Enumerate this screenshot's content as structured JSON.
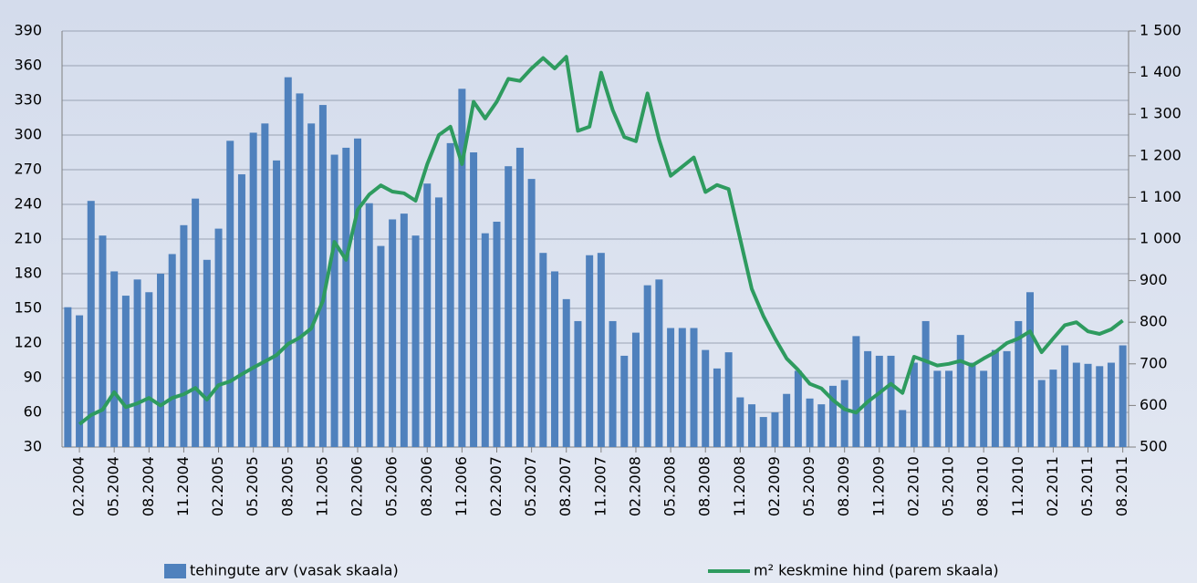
{
  "chart_data": {
    "type": "bar",
    "categories": [
      null,
      "02.2004",
      null,
      null,
      "05.2004",
      null,
      null,
      "08.2004",
      null,
      null,
      "11.2004",
      null,
      null,
      "02.2005",
      null,
      null,
      "05.2005",
      null,
      null,
      "08.2005",
      null,
      null,
      "11.2005",
      null,
      null,
      "02.2006",
      null,
      null,
      "05.2006",
      null,
      null,
      "08.2006",
      null,
      null,
      "11.2006",
      null,
      null,
      "02.2007",
      null,
      null,
      "05.2007",
      null,
      null,
      "08.2007",
      null,
      null,
      "11.2007",
      null,
      null,
      "02.2008",
      null,
      null,
      "05.2008",
      null,
      null,
      "08.2008",
      null,
      null,
      "11.2008",
      null,
      null,
      "02.2009",
      null,
      null,
      "05.2009",
      null,
      null,
      "08.2009",
      null,
      null,
      "11.2009",
      null,
      null,
      "02.2010",
      null,
      null,
      "05.2010",
      null,
      null,
      "08.2010",
      null,
      null,
      "11.2010",
      null,
      null,
      "02.2011",
      null,
      null,
      "05.2011",
      null,
      null,
      "08.2011"
    ],
    "series": [
      {
        "name": "tehingute arv (vasak skaala)",
        "type": "bar",
        "color": "#4f81bd",
        "values": [
          151,
          144,
          243,
          213,
          182,
          161,
          175,
          164,
          180,
          197,
          222,
          245,
          192,
          219,
          295,
          266,
          302,
          310,
          278,
          350,
          336,
          310,
          326,
          283,
          289,
          297,
          241,
          204,
          227,
          232,
          213,
          258,
          246,
          293,
          340,
          285,
          215,
          225,
          273,
          289,
          262,
          198,
          182,
          158,
          139,
          196,
          198,
          139,
          109,
          129,
          170,
          175,
          133,
          133,
          133,
          114,
          98,
          112,
          73,
          67,
          56,
          60,
          76,
          96,
          72,
          67,
          83,
          88,
          126,
          113,
          109,
          109,
          62,
          103,
          139,
          96,
          96,
          127,
          103,
          96,
          114,
          113,
          139,
          164,
          88,
          97,
          118,
          103,
          102,
          100,
          103,
          118
        ]
      },
      {
        "name": "m² keskmine hind (parem skaala)",
        "type": "line",
        "axis": "y2",
        "color": "#2e9b5f",
        "values": [
          null,
          555,
          577,
          590,
          632,
          596,
          605,
          618,
          600,
          618,
          627,
          642,
          614,
          649,
          658,
          675,
          691,
          706,
          721,
          748,
          763,
          785,
          851,
          993,
          950,
          1070,
          1107,
          1129,
          1114,
          1110,
          1092,
          1180,
          1250,
          1270,
          1180,
          1330,
          1290,
          1330,
          1385,
          1380,
          1410,
          1435,
          1410,
          1438,
          1260,
          1270,
          1400,
          1310,
          1245,
          1235,
          1350,
          1239,
          1152,
          1174,
          1196,
          1113,
          1130,
          1120,
          1000,
          880,
          815,
          761,
          713,
          685,
          652,
          641,
          613,
          591,
          583,
          609,
          630,
          652,
          630,
          717,
          707,
          696,
          700,
          707,
          696,
          713,
          728,
          750,
          761,
          778,
          728,
          761,
          793,
          800,
          778,
          772,
          783,
          804
        ]
      }
    ],
    "ylim": [
      30,
      390
    ],
    "yticks": [
      30,
      60,
      90,
      120,
      150,
      180,
      210,
      240,
      270,
      300,
      330,
      360,
      390
    ],
    "y2lim": [
      500,
      1500
    ],
    "y2ticks": [
      500,
      600,
      700,
      800,
      900,
      {
        "value": 1000,
        "label": "1 000"
      },
      {
        "value": 1100,
        "label": "1 100"
      },
      {
        "value": 1200,
        "label": "1 200"
      },
      {
        "value": 1300,
        "label": "1 300"
      },
      {
        "value": 1400,
        "label": "1 400"
      },
      {
        "value": 1500,
        "label": "1 500"
      }
    ],
    "grid": true,
    "legend": "bottom"
  }
}
